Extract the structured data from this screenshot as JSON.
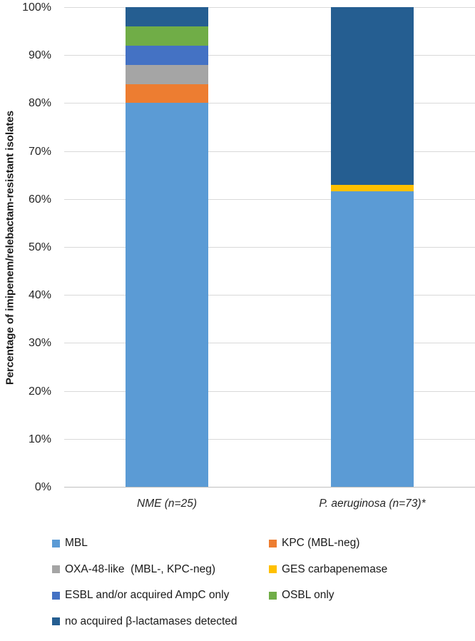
{
  "chart_data": {
    "type": "bar",
    "stacked": true,
    "title": "",
    "xlabel": "",
    "ylabel": "Percentage of imipenem/relebactam-resistant isolates",
    "ylim": [
      0,
      100
    ],
    "ytick_step": 10,
    "yticks": [
      "0%",
      "10%",
      "20%",
      "30%",
      "40%",
      "50%",
      "60%",
      "70%",
      "80%",
      "90%",
      "100%"
    ],
    "grid": true,
    "categories": [
      "NME (n=25)",
      "P. aeruginosa (n=73)*"
    ],
    "series": [
      {
        "name": "MBL",
        "color": "#5B9BD5",
        "values": [
          80,
          61.6
        ]
      },
      {
        "name": "KPC (MBL-neg)",
        "color": "#ED7D31",
        "values": [
          4,
          0
        ]
      },
      {
        "name": "OXA-48-like  (MBL-, KPC-neg)",
        "color": "#A5A5A5",
        "values": [
          4,
          0
        ]
      },
      {
        "name": "GES carbapenemase",
        "color": "#FFC000",
        "values": [
          0,
          1.4
        ]
      },
      {
        "name": "ESBL and/or acquired AmpC only",
        "color": "#4472C4",
        "values": [
          4,
          0
        ]
      },
      {
        "name": "OSBL only",
        "color": "#70AD47",
        "values": [
          4,
          0
        ]
      },
      {
        "name": "no acquired β-lactamases detected",
        "color": "#255E91",
        "values": [
          4,
          37
        ]
      }
    ],
    "legend_position": "bottom",
    "legend_rows": [
      [
        0,
        1
      ],
      [
        2,
        3
      ],
      [
        4,
        5
      ],
      [
        6
      ]
    ]
  }
}
